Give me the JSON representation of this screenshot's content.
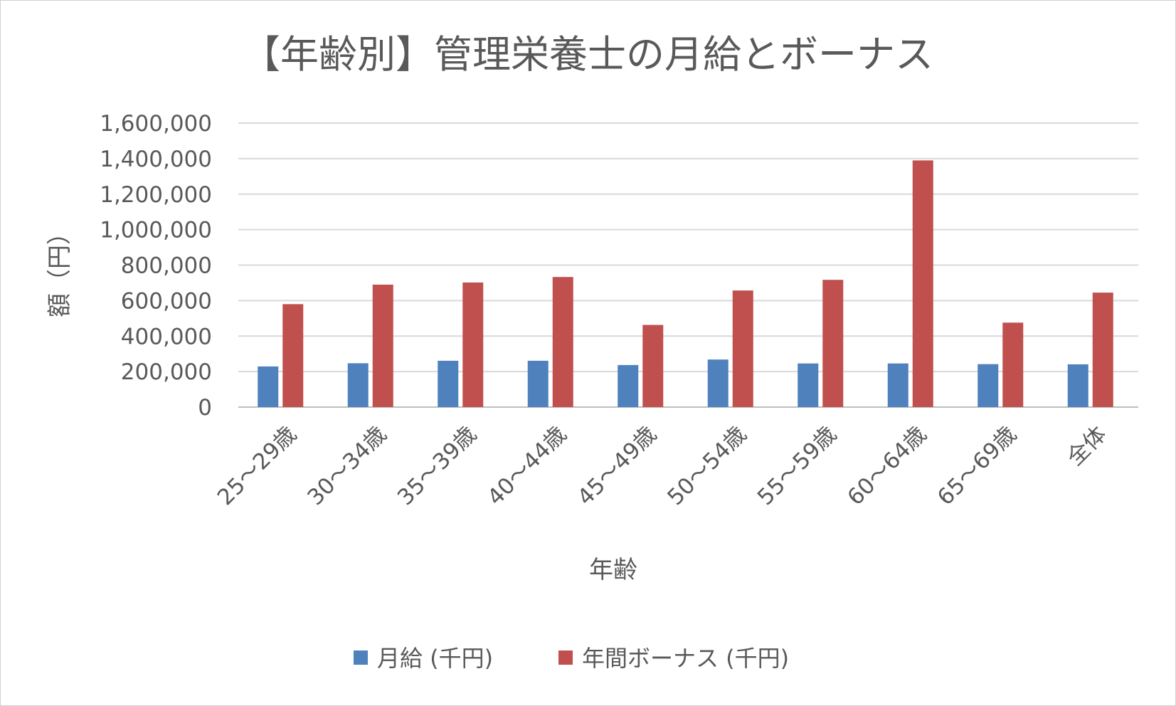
{
  "chart_data": {
    "type": "bar",
    "title": "【年齢別】管理栄養士の月給とボーナス",
    "xlabel": "年齢",
    "ylabel": "額（円）",
    "ylim": [
      0,
      1600000
    ],
    "yticks": [
      0,
      200000,
      400000,
      600000,
      800000,
      1000000,
      1200000,
      1400000,
      1600000
    ],
    "ytick_labels": [
      "0",
      "200,000",
      "400,000",
      "600,000",
      "800,000",
      "1,000,000",
      "1,200,000",
      "1,400,000",
      "1,600,000"
    ],
    "grid": true,
    "legend_position": "bottom",
    "categories": [
      "25～29歳",
      "30～34歳",
      "35～39歳",
      "40～44歳",
      "45～49歳",
      "50～54歳",
      "55～59歳",
      "60～64歳",
      "65～69歳",
      "全体"
    ],
    "series": [
      {
        "name": "月給 (千円)",
        "color": "#4f81bd",
        "values": [
          229000,
          247000,
          261000,
          261000,
          237000,
          268000,
          246000,
          246000,
          242000,
          241000
        ]
      },
      {
        "name": "年間ボーナス (千円)",
        "color": "#c0504d",
        "values": [
          580000,
          690000,
          702000,
          733000,
          463000,
          657000,
          717000,
          1390000,
          476000,
          645000
        ]
      }
    ]
  }
}
